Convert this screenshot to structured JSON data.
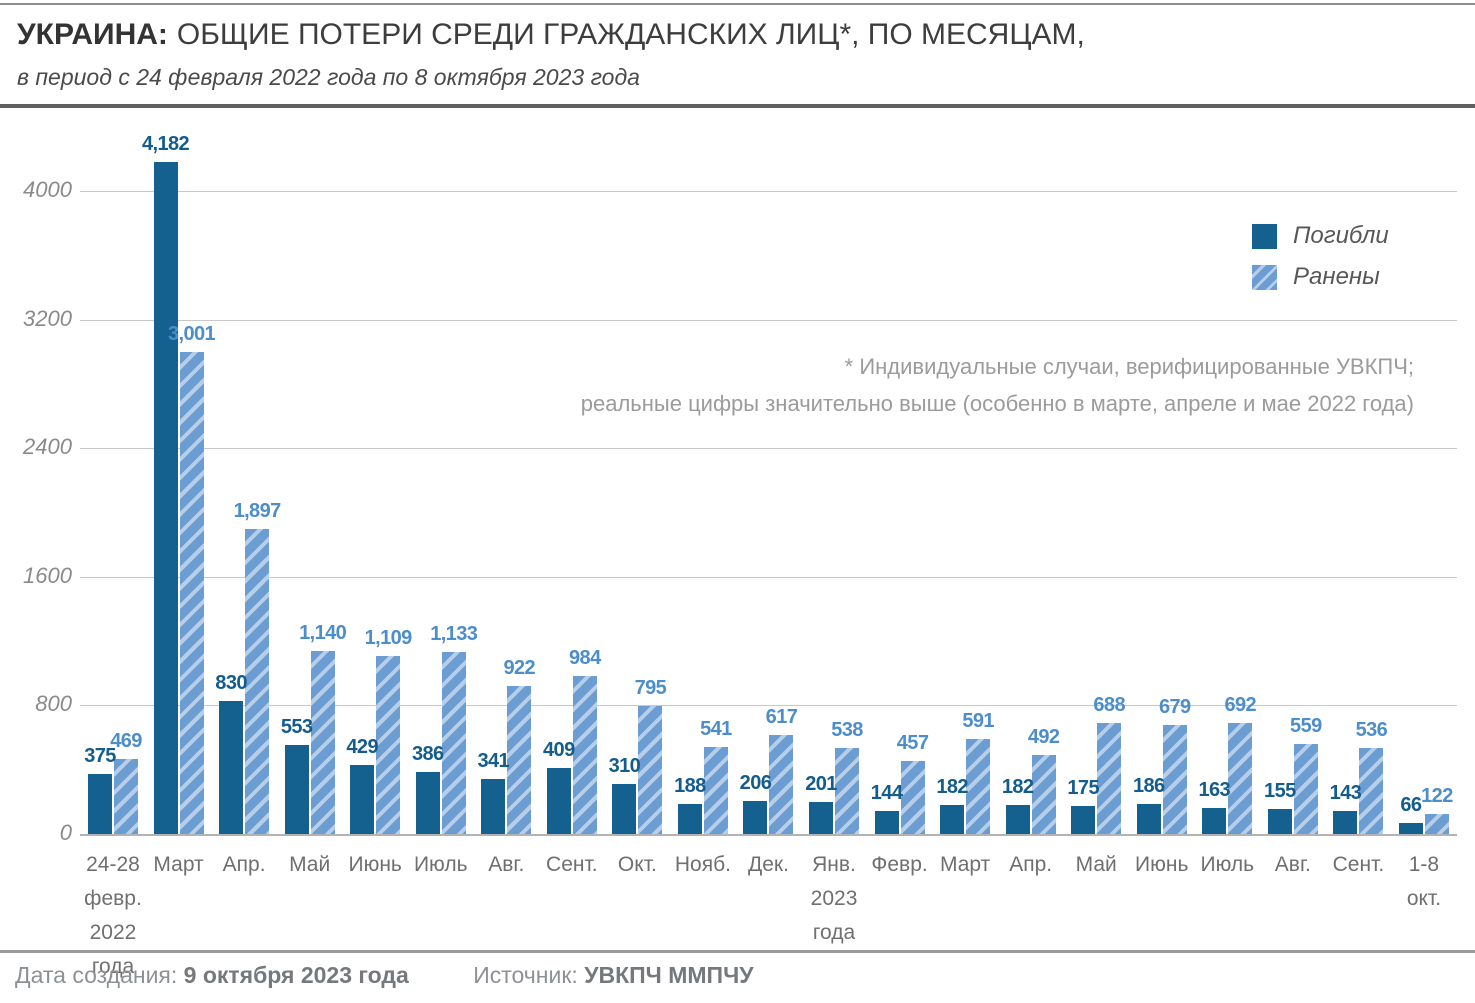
{
  "header": {
    "title_bold": "УКРАИНА:",
    "title_rest": "ОБЩИЕ ПОТЕРИ СРЕДИ ГРАЖДАНСКИХ ЛИЦ*, ПО МЕСЯЦАМ,",
    "subtitle": "в период с 24 февраля 2022 года по 8 октября 2023 года"
  },
  "legend": {
    "killed_label": "Погибли",
    "wounded_label": "Ранены"
  },
  "annotation": {
    "line1": "* Индивидуальные случаи, верифицированные УВКПЧ;",
    "line2": "реальные цифры значительно выше (особенно в марте, апреле и мае 2022 года)"
  },
  "footer": {
    "created_label": "Дата создания:",
    "created_value": "9 октября 2023 года",
    "source_label": "Источник:",
    "source_value": "УВКПЧ ММПЧУ"
  },
  "colors": {
    "killed": "#14608f",
    "killed_label": "#135c8c",
    "wounded_base": "#6b9cd2",
    "wounded_stripe": "#b7cee9",
    "wounded_label": "#4c8dcb"
  },
  "chart_data": {
    "type": "bar",
    "title": "УКРАИНА: ОБЩИЕ ПОТЕРИ СРЕДИ ГРАЖДАНСКИХ ЛИЦ, ПО МЕСЯЦАМ",
    "categories": [
      [
        "24-28",
        "февр.",
        "2022 года"
      ],
      [
        "Март"
      ],
      [
        "Апр."
      ],
      [
        "Май"
      ],
      [
        "Июнь"
      ],
      [
        "Июль"
      ],
      [
        "Авг."
      ],
      [
        "Сент."
      ],
      [
        "Окт."
      ],
      [
        "Нояб."
      ],
      [
        "Дек."
      ],
      [
        "Янв.",
        "2023",
        "года"
      ],
      [
        "Февр."
      ],
      [
        "Март"
      ],
      [
        "Апр."
      ],
      [
        "Май"
      ],
      [
        "Июнь"
      ],
      [
        "Июль"
      ],
      [
        "Авг."
      ],
      [
        "Сент."
      ],
      [
        "1-8",
        "окт."
      ]
    ],
    "series": [
      {
        "name": "Погибли",
        "values": [
          375,
          4182,
          830,
          553,
          429,
          386,
          341,
          409,
          310,
          188,
          206,
          201,
          144,
          182,
          182,
          175,
          186,
          163,
          155,
          143,
          66
        ]
      },
      {
        "name": "Ранены",
        "values": [
          469,
          3001,
          1897,
          1140,
          1109,
          1133,
          922,
          984,
          795,
          541,
          617,
          538,
          457,
          591,
          492,
          688,
          679,
          692,
          559,
          536,
          122
        ]
      }
    ],
    "y_ticks": [
      0,
      800,
      1600,
      2400,
      3200,
      4000
    ],
    "ylim": [
      0,
      4182
    ],
    "grid": true,
    "legend_position": "top-right",
    "value_labels": true
  }
}
